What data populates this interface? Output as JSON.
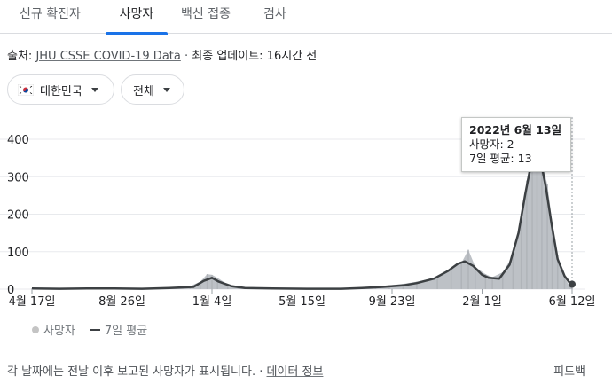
{
  "tabs": [
    {
      "label": "신규 확진자"
    },
    {
      "label": "사망자"
    },
    {
      "label": "백신 접종"
    },
    {
      "label": "검사"
    }
  ],
  "active_tab_index": 1,
  "source": {
    "prefix": "출처: ",
    "link": "JHU CSSE COVID-19 Data",
    "separator": " · ",
    "updated": "최종 업데이트: 16시간 전"
  },
  "filters": {
    "region": {
      "flag_icon": "south-korea-flag-icon",
      "label": "대한민국"
    },
    "scope": {
      "label": "전체"
    }
  },
  "tooltip": {
    "title": "2022년 6월 13일",
    "line1": "사망자: 2",
    "line2": "7일 평균: 13"
  },
  "legend": {
    "series1": "사망자",
    "series2": "7일 평균"
  },
  "footer": {
    "note": "각 날짜에는 전날 이후 보고된 사망자가 표시됩니다.",
    "separator": " · ",
    "link": "데이터 정보",
    "feedback": "피드백"
  },
  "colors": {
    "accent": "#1a73e8",
    "area": "#bdc1c6",
    "line": "#3c4043"
  },
  "chart_data": {
    "type": "area",
    "ylim": [
      0,
      400
    ],
    "yticks": [
      0,
      100,
      200,
      300,
      400
    ],
    "xticks": [
      {
        "label": "4월 17일",
        "day": 0
      },
      {
        "label": "8월 26일",
        "day": 131
      },
      {
        "label": "1월 4일",
        "day": 262
      },
      {
        "label": "5월 15일",
        "day": 393
      },
      {
        "label": "9월 23일",
        "day": 524
      },
      {
        "label": "2월 1일",
        "day": 655
      },
      {
        "label": "6월 12일",
        "day": 786
      }
    ],
    "grid": true,
    "series": [
      {
        "name": "사망자"
      },
      {
        "name": "7일 평균"
      }
    ],
    "daily_points": [
      [
        0,
        2
      ],
      [
        40,
        3
      ],
      [
        80,
        1
      ],
      [
        120,
        2
      ],
      [
        160,
        3
      ],
      [
        200,
        4
      ],
      [
        230,
        8
      ],
      [
        245,
        20
      ],
      [
        255,
        40
      ],
      [
        262,
        38
      ],
      [
        270,
        30
      ],
      [
        285,
        12
      ],
      [
        300,
        6
      ],
      [
        340,
        4
      ],
      [
        380,
        2
      ],
      [
        420,
        1
      ],
      [
        460,
        2
      ],
      [
        480,
        4
      ],
      [
        500,
        8
      ],
      [
        520,
        10
      ],
      [
        540,
        14
      ],
      [
        560,
        20
      ],
      [
        590,
        32
      ],
      [
        610,
        55
      ],
      [
        625,
        70
      ],
      [
        635,
        105
      ],
      [
        645,
        60
      ],
      [
        660,
        40
      ],
      [
        670,
        32
      ],
      [
        685,
        45
      ],
      [
        700,
        90
      ],
      [
        712,
        190
      ],
      [
        720,
        290
      ],
      [
        728,
        370
      ],
      [
        735,
        400
      ],
      [
        742,
        340
      ],
      [
        750,
        280
      ],
      [
        757,
        180
      ],
      [
        765,
        90
      ],
      [
        775,
        30
      ],
      [
        782,
        10
      ],
      [
        786,
        2
      ]
    ],
    "avg_points": [
      [
        0,
        2
      ],
      [
        40,
        1
      ],
      [
        80,
        2
      ],
      [
        120,
        2
      ],
      [
        160,
        1
      ],
      [
        200,
        3
      ],
      [
        235,
        6
      ],
      [
        250,
        22
      ],
      [
        262,
        30
      ],
      [
        272,
        20
      ],
      [
        290,
        8
      ],
      [
        310,
        3
      ],
      [
        350,
        2
      ],
      [
        400,
        1
      ],
      [
        450,
        1
      ],
      [
        480,
        3
      ],
      [
        510,
        6
      ],
      [
        540,
        10
      ],
      [
        560,
        16
      ],
      [
        585,
        28
      ],
      [
        605,
        48
      ],
      [
        620,
        68
      ],
      [
        630,
        74
      ],
      [
        642,
        62
      ],
      [
        655,
        38
      ],
      [
        665,
        30
      ],
      [
        680,
        28
      ],
      [
        695,
        65
      ],
      [
        708,
        150
      ],
      [
        718,
        255
      ],
      [
        726,
        330
      ],
      [
        733,
        350
      ],
      [
        740,
        345
      ],
      [
        748,
        270
      ],
      [
        756,
        175
      ],
      [
        765,
        80
      ],
      [
        775,
        35
      ],
      [
        782,
        18
      ],
      [
        786,
        13
      ]
    ],
    "hover_day": 786
  }
}
